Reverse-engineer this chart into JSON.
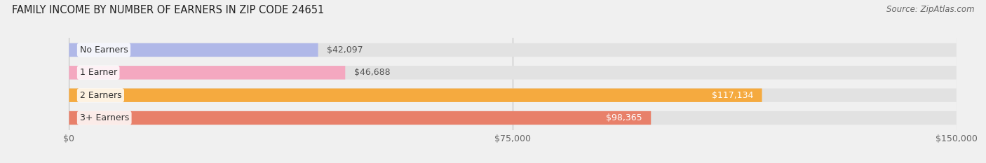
{
  "title": "FAMILY INCOME BY NUMBER OF EARNERS IN ZIP CODE 24651",
  "source": "Source: ZipAtlas.com",
  "categories": [
    "No Earners",
    "1 Earner",
    "2 Earners",
    "3+ Earners"
  ],
  "values": [
    42097,
    46688,
    117134,
    98365
  ],
  "bar_colors": [
    "#b0b8e8",
    "#f4a8c0",
    "#f5aa3f",
    "#e8806a"
  ],
  "label_colors": [
    "#555555",
    "#555555",
    "#ffffff",
    "#ffffff"
  ],
  "value_labels": [
    "$42,097",
    "$46,688",
    "$117,134",
    "$98,365"
  ],
  "xlim": [
    0,
    150000
  ],
  "xticks": [
    0,
    75000,
    150000
  ],
  "xtick_labels": [
    "$0",
    "$75,000",
    "$150,000"
  ],
  "background_color": "#f0f0f0",
  "bar_bg_color": "#e2e2e2",
  "title_fontsize": 10.5,
  "source_fontsize": 8.5,
  "label_fontsize": 9,
  "value_fontsize": 9,
  "tick_fontsize": 9
}
